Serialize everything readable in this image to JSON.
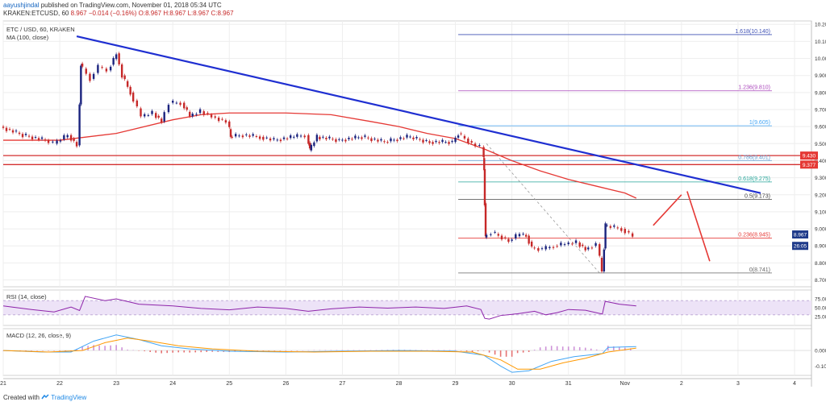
{
  "header": {
    "user": "aayushjindal",
    "published": "published on TradingView.com, November 01, 2018 05:34 UTC",
    "symbol": "KRAKEN:ETCUSD, 60",
    "ohlc": "8.967 −0.014 (−0.16%) O:8.967 H:8.967 L:8.967 C:8.967"
  },
  "footer": {
    "created_with": "Created with",
    "brand": "TradingView"
  },
  "chart_data": [
    {
      "type": "candlestick",
      "title": "ETC / USD, 60, KRAKEN",
      "indicator_label": "MA (100, close)",
      "ylim": [
        8.66,
        10.22
      ],
      "y_ticks": [
        "10.200",
        "10.100",
        "10.000",
        "9.900",
        "9.800",
        "9.700",
        "9.600",
        "9.500",
        "9.400",
        "9.300",
        "9.200",
        "9.100",
        "9.000",
        "8.900",
        "8.800",
        "8.700"
      ],
      "x_ticks": [
        "21",
        "22",
        "23",
        "24",
        "25",
        "26",
        "27",
        "28",
        "29",
        "30",
        "31",
        "Nov",
        "2",
        "3",
        "4"
      ],
      "xlim_days": [
        21.0,
        35.3
      ],
      "price": [
        [
          21.0,
          9.6
        ],
        [
          21.4,
          9.55
        ],
        [
          21.8,
          9.52
        ],
        [
          21.95,
          9.5
        ],
        [
          22.2,
          9.55
        ],
        [
          22.35,
          9.49
        ],
        [
          22.4,
          9.97
        ],
        [
          22.6,
          9.88
        ],
        [
          22.75,
          9.95
        ],
        [
          22.9,
          9.93
        ],
        [
          23.05,
          10.03
        ],
        [
          23.15,
          9.9
        ],
        [
          23.3,
          9.8
        ],
        [
          23.5,
          9.66
        ],
        [
          23.7,
          9.68
        ],
        [
          23.85,
          9.63
        ],
        [
          24.0,
          9.74
        ],
        [
          24.2,
          9.74
        ],
        [
          24.35,
          9.66
        ],
        [
          24.55,
          9.69
        ],
        [
          24.75,
          9.66
        ],
        [
          25.0,
          9.63
        ],
        [
          25.05,
          9.54
        ],
        [
          25.3,
          9.55
        ],
        [
          25.6,
          9.54
        ],
        [
          25.85,
          9.52
        ],
        [
          26.2,
          9.54
        ],
        [
          26.4,
          9.55
        ],
        [
          26.45,
          9.46
        ],
        [
          26.6,
          9.54
        ],
        [
          27.0,
          9.52
        ],
        [
          27.4,
          9.54
        ],
        [
          27.8,
          9.51
        ],
        [
          28.2,
          9.54
        ],
        [
          28.6,
          9.51
        ],
        [
          29.0,
          9.51
        ],
        [
          29.1,
          9.56
        ],
        [
          29.35,
          9.5
        ],
        [
          29.5,
          9.48
        ],
        [
          29.52,
          9.35
        ],
        [
          29.55,
          8.95
        ],
        [
          29.7,
          8.98
        ],
        [
          30.0,
          8.93
        ],
        [
          30.2,
          8.97
        ],
        [
          30.3,
          8.96
        ],
        [
          30.4,
          8.89
        ],
        [
          30.6,
          8.88
        ],
        [
          30.8,
          8.9
        ],
        [
          31.0,
          8.91
        ],
        [
          31.2,
          8.92
        ],
        [
          31.35,
          8.88
        ],
        [
          31.55,
          8.91
        ],
        [
          31.63,
          8.75
        ],
        [
          31.68,
          9.02
        ],
        [
          32.0,
          9.0
        ],
        [
          32.2,
          8.96
        ]
      ],
      "ma_100": [
        [
          21.0,
          9.52
        ],
        [
          22.0,
          9.52
        ],
        [
          23.0,
          9.56
        ],
        [
          24.0,
          9.64
        ],
        [
          24.5,
          9.67
        ],
        [
          25.0,
          9.68
        ],
        [
          26.0,
          9.68
        ],
        [
          26.8,
          9.67
        ],
        [
          27.5,
          9.63
        ],
        [
          28.0,
          9.6
        ],
        [
          28.5,
          9.56
        ],
        [
          29.0,
          9.53
        ],
        [
          29.5,
          9.47
        ],
        [
          30.0,
          9.4
        ],
        [
          30.5,
          9.34
        ],
        [
          31.0,
          9.29
        ],
        [
          31.5,
          9.25
        ],
        [
          32.0,
          9.21
        ],
        [
          32.2,
          9.18
        ]
      ],
      "trend_line": [
        [
          22.3,
          10.13
        ],
        [
          34.4,
          9.21
        ]
      ],
      "horizontal_resistance": [
        9.43,
        9.377
      ],
      "fib_levels": [
        {
          "label": "1.618(10.140)",
          "value": 10.14,
          "color": "#3f51b5"
        },
        {
          "label": "1.236(9.810)",
          "value": 9.81,
          "color": "#ab47bc"
        },
        {
          "label": "1(9.605)",
          "value": 9.605,
          "color": "#42a5f5"
        },
        {
          "label": "0.786(9.401)",
          "value": 9.401,
          "color": "#5c9bd1"
        },
        {
          "label": "0.618(9.275)",
          "value": 9.275,
          "color": "#26a69a"
        },
        {
          "label": "0.5(9.173)",
          "value": 9.173,
          "color": "#444444"
        },
        {
          "label": "0.236(8.945)",
          "value": 8.945,
          "color": "#e53935"
        },
        {
          "label": "0(8.741)",
          "value": 8.741,
          "color": "#666666"
        }
      ],
      "price_tags": [
        {
          "text": "9.430",
          "color": "#e53935"
        },
        {
          "text": "9.377",
          "color": "#e53935"
        },
        {
          "text": "8.967",
          "color": "#1e3a8a"
        },
        {
          "text": "26:05",
          "color": "#1e3a8a"
        }
      ]
    },
    {
      "type": "line",
      "title": "RSI (14, close)",
      "ylim": [
        0,
        100
      ],
      "y_ticks": [
        "75.0000",
        "50.0000",
        "25.0000"
      ],
      "levels": [
        70,
        30
      ],
      "values": [
        [
          21.0,
          55
        ],
        [
          21.5,
          45
        ],
        [
          21.9,
          38
        ],
        [
          22.2,
          52
        ],
        [
          22.35,
          42
        ],
        [
          22.45,
          82
        ],
        [
          22.8,
          70
        ],
        [
          23.0,
          75
        ],
        [
          23.4,
          60
        ],
        [
          24.0,
          55
        ],
        [
          24.5,
          48
        ],
        [
          25.0,
          44
        ],
        [
          25.5,
          52
        ],
        [
          26.0,
          48
        ],
        [
          26.4,
          40
        ],
        [
          26.8,
          47
        ],
        [
          27.3,
          52
        ],
        [
          27.8,
          49
        ],
        [
          28.3,
          52
        ],
        [
          28.8,
          48
        ],
        [
          29.2,
          55
        ],
        [
          29.45,
          45
        ],
        [
          29.52,
          20
        ],
        [
          29.6,
          18
        ],
        [
          29.8,
          28
        ],
        [
          30.1,
          33
        ],
        [
          30.4,
          40
        ],
        [
          30.6,
          30
        ],
        [
          30.8,
          36
        ],
        [
          31.0,
          45
        ],
        [
          31.3,
          43
        ],
        [
          31.6,
          32
        ],
        [
          31.65,
          68
        ],
        [
          31.9,
          60
        ],
        [
          32.2,
          55
        ]
      ]
    },
    {
      "type": "line",
      "title": "MACD (12, 26, close, 9)",
      "ylim": [
        -0.16,
        0.14
      ],
      "y_ticks": [
        "0.0000",
        "-0.1000"
      ],
      "macd": [
        [
          21.0,
          0.0
        ],
        [
          21.7,
          -0.01
        ],
        [
          22.2,
          -0.01
        ],
        [
          22.6,
          0.06
        ],
        [
          23.0,
          0.1
        ],
        [
          23.4,
          0.07
        ],
        [
          23.8,
          0.03
        ],
        [
          24.3,
          0.01
        ],
        [
          25.0,
          -0.005
        ],
        [
          26.0,
          -0.01
        ],
        [
          27.0,
          -0.005
        ],
        [
          28.0,
          0.0
        ],
        [
          29.0,
          -0.005
        ],
        [
          29.5,
          -0.03
        ],
        [
          29.8,
          -0.1
        ],
        [
          30.0,
          -0.14
        ],
        [
          30.3,
          -0.13
        ],
        [
          30.7,
          -0.07
        ],
        [
          31.1,
          -0.04
        ],
        [
          31.6,
          -0.02
        ],
        [
          31.7,
          0.02
        ],
        [
          32.2,
          0.025
        ]
      ],
      "signal": [
        [
          21.0,
          0.0
        ],
        [
          21.8,
          -0.01
        ],
        [
          22.4,
          0.0
        ],
        [
          22.8,
          0.05
        ],
        [
          23.2,
          0.08
        ],
        [
          23.6,
          0.06
        ],
        [
          24.1,
          0.03
        ],
        [
          24.7,
          0.01
        ],
        [
          25.5,
          -0.005
        ],
        [
          26.5,
          -0.01
        ],
        [
          27.5,
          -0.005
        ],
        [
          28.5,
          -0.005
        ],
        [
          29.3,
          -0.01
        ],
        [
          29.8,
          -0.06
        ],
        [
          30.1,
          -0.12
        ],
        [
          30.5,
          -0.12
        ],
        [
          30.9,
          -0.08
        ],
        [
          31.3,
          -0.05
        ],
        [
          31.7,
          -0.01
        ],
        [
          32.2,
          0.015
        ]
      ]
    }
  ]
}
